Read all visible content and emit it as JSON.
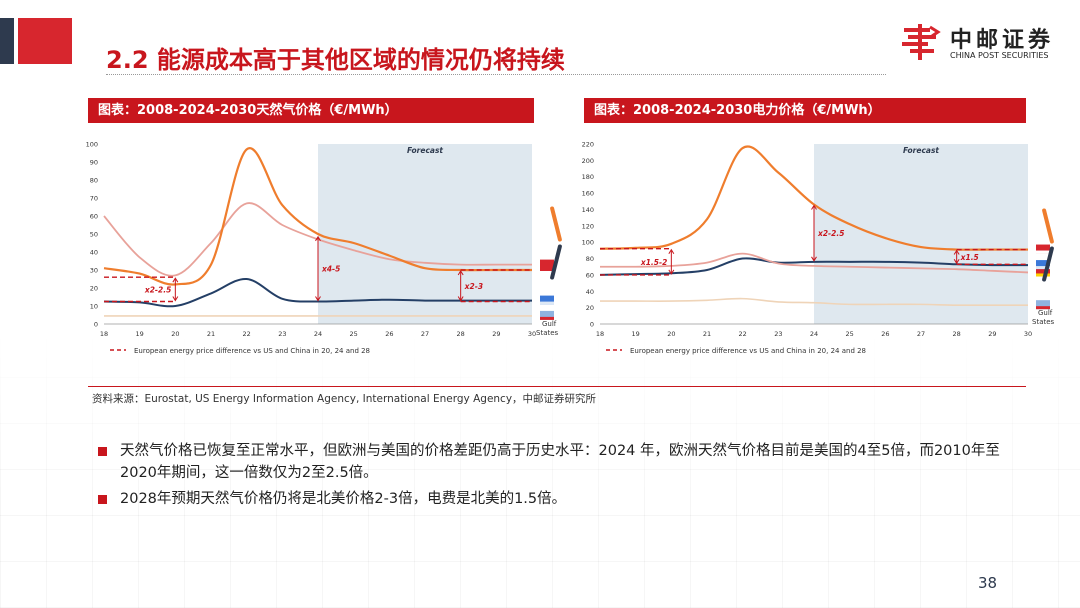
{
  "page": {
    "title": "2.2 能源成本高于其他区域的情况仍将持续",
    "page_number": "38",
    "source": "资料来源：Eurostat, US Energy Information Agency, International Energy Agency，中邮证券研究所",
    "bullets": [
      "天然气价格已恢复至正常水平，但欧洲与美国的价格差距仍高于历史水平：2024 年，欧洲天然气价格目前是美国的4至5倍，而2010年至2020年期间，这一倍数仅为2至2.5倍。",
      "2028年预期天然气价格仍将是北美价格2-3倍，电费是北美的1.5倍。"
    ]
  },
  "logo": {
    "name_cn": "中邮证券",
    "name_en": "CHINA POST SECURITIES"
  },
  "colors": {
    "accent_red": "#c8161d",
    "dark_blue": "#2e3a4e",
    "orange": "#ef7d2d",
    "pink": "#e8a29a",
    "navy": "#243f66",
    "tan": "#efd4b8",
    "forecast_bg": "#dfe8ef"
  },
  "chart_data": [
    {
      "type": "line",
      "panel_title": "图表：2008-2024-2030天然气价格（€/MWh）",
      "x": [
        "18",
        "19",
        "20",
        "21",
        "22",
        "23",
        "24",
        "25",
        "26",
        "27",
        "28",
        "29",
        "30"
      ],
      "ylim": [
        0,
        100
      ],
      "yticks": [
        0,
        10,
        20,
        30,
        40,
        50,
        60,
        70,
        80,
        90,
        100
      ],
      "forecast_label": "Forecast",
      "forecast_start": "24",
      "legend": "European energy price difference vs US and China in 20, 24 and 28",
      "series": [
        {
          "color": "orange",
          "values": [
            31,
            28,
            22,
            33,
            97,
            66,
            50,
            45,
            38,
            31,
            30,
            30,
            30
          ]
        },
        {
          "color": "pink",
          "values": [
            60,
            37,
            27,
            45,
            67,
            55,
            47,
            41,
            36,
            34,
            33,
            33,
            33
          ]
        },
        {
          "color": "navy",
          "values": [
            12.5,
            12,
            10,
            17,
            25,
            14,
            12.5,
            13,
            13.5,
            13,
            13,
            13,
            13
          ]
        },
        {
          "color": "tan",
          "values": [
            4.5,
            4.5,
            4.5,
            4.5,
            4.5,
            4.5,
            4.5,
            4.5,
            4.5,
            4.5,
            4.5,
            4.5,
            4.5
          ]
        }
      ],
      "annotations": [
        "x2-2.5",
        "x4-5",
        "x2-3"
      ],
      "end_labels": [
        "Gulf",
        "States"
      ]
    },
    {
      "type": "line",
      "panel_title": "图表：2008-2024-2030电力价格（€/MWh）",
      "x": [
        "18",
        "19",
        "20",
        "21",
        "22",
        "23",
        "24",
        "25",
        "26",
        "27",
        "28",
        "29",
        "30"
      ],
      "ylim": [
        0,
        220
      ],
      "yticks": [
        0,
        20,
        40,
        60,
        80,
        100,
        120,
        140,
        160,
        180,
        200,
        220
      ],
      "forecast_label": "Forecast",
      "forecast_start": "24",
      "legend": "European energy price difference vs US and China in 20, 24 and 28",
      "series": [
        {
          "color": "orange",
          "values": [
            92,
            93,
            98,
            128,
            215,
            185,
            146,
            122,
            105,
            94,
            91,
            91,
            91
          ]
        },
        {
          "color": "pink",
          "values": [
            70,
            70,
            71,
            75,
            86,
            74,
            71,
            70,
            69,
            68,
            67,
            65,
            63
          ]
        },
        {
          "color": "navy",
          "values": [
            60,
            61,
            62,
            66,
            80,
            75,
            76,
            76,
            76,
            75,
            73,
            72,
            72
          ]
        },
        {
          "color": "tan",
          "values": [
            28,
            28,
            28,
            29,
            31,
            27,
            26,
            24,
            24,
            24,
            23,
            23,
            23
          ]
        }
      ],
      "annotations": [
        "x1.5-2",
        "x2-2.5",
        "x1.5"
      ],
      "end_labels": [
        "Gulf",
        "States"
      ]
    }
  ]
}
